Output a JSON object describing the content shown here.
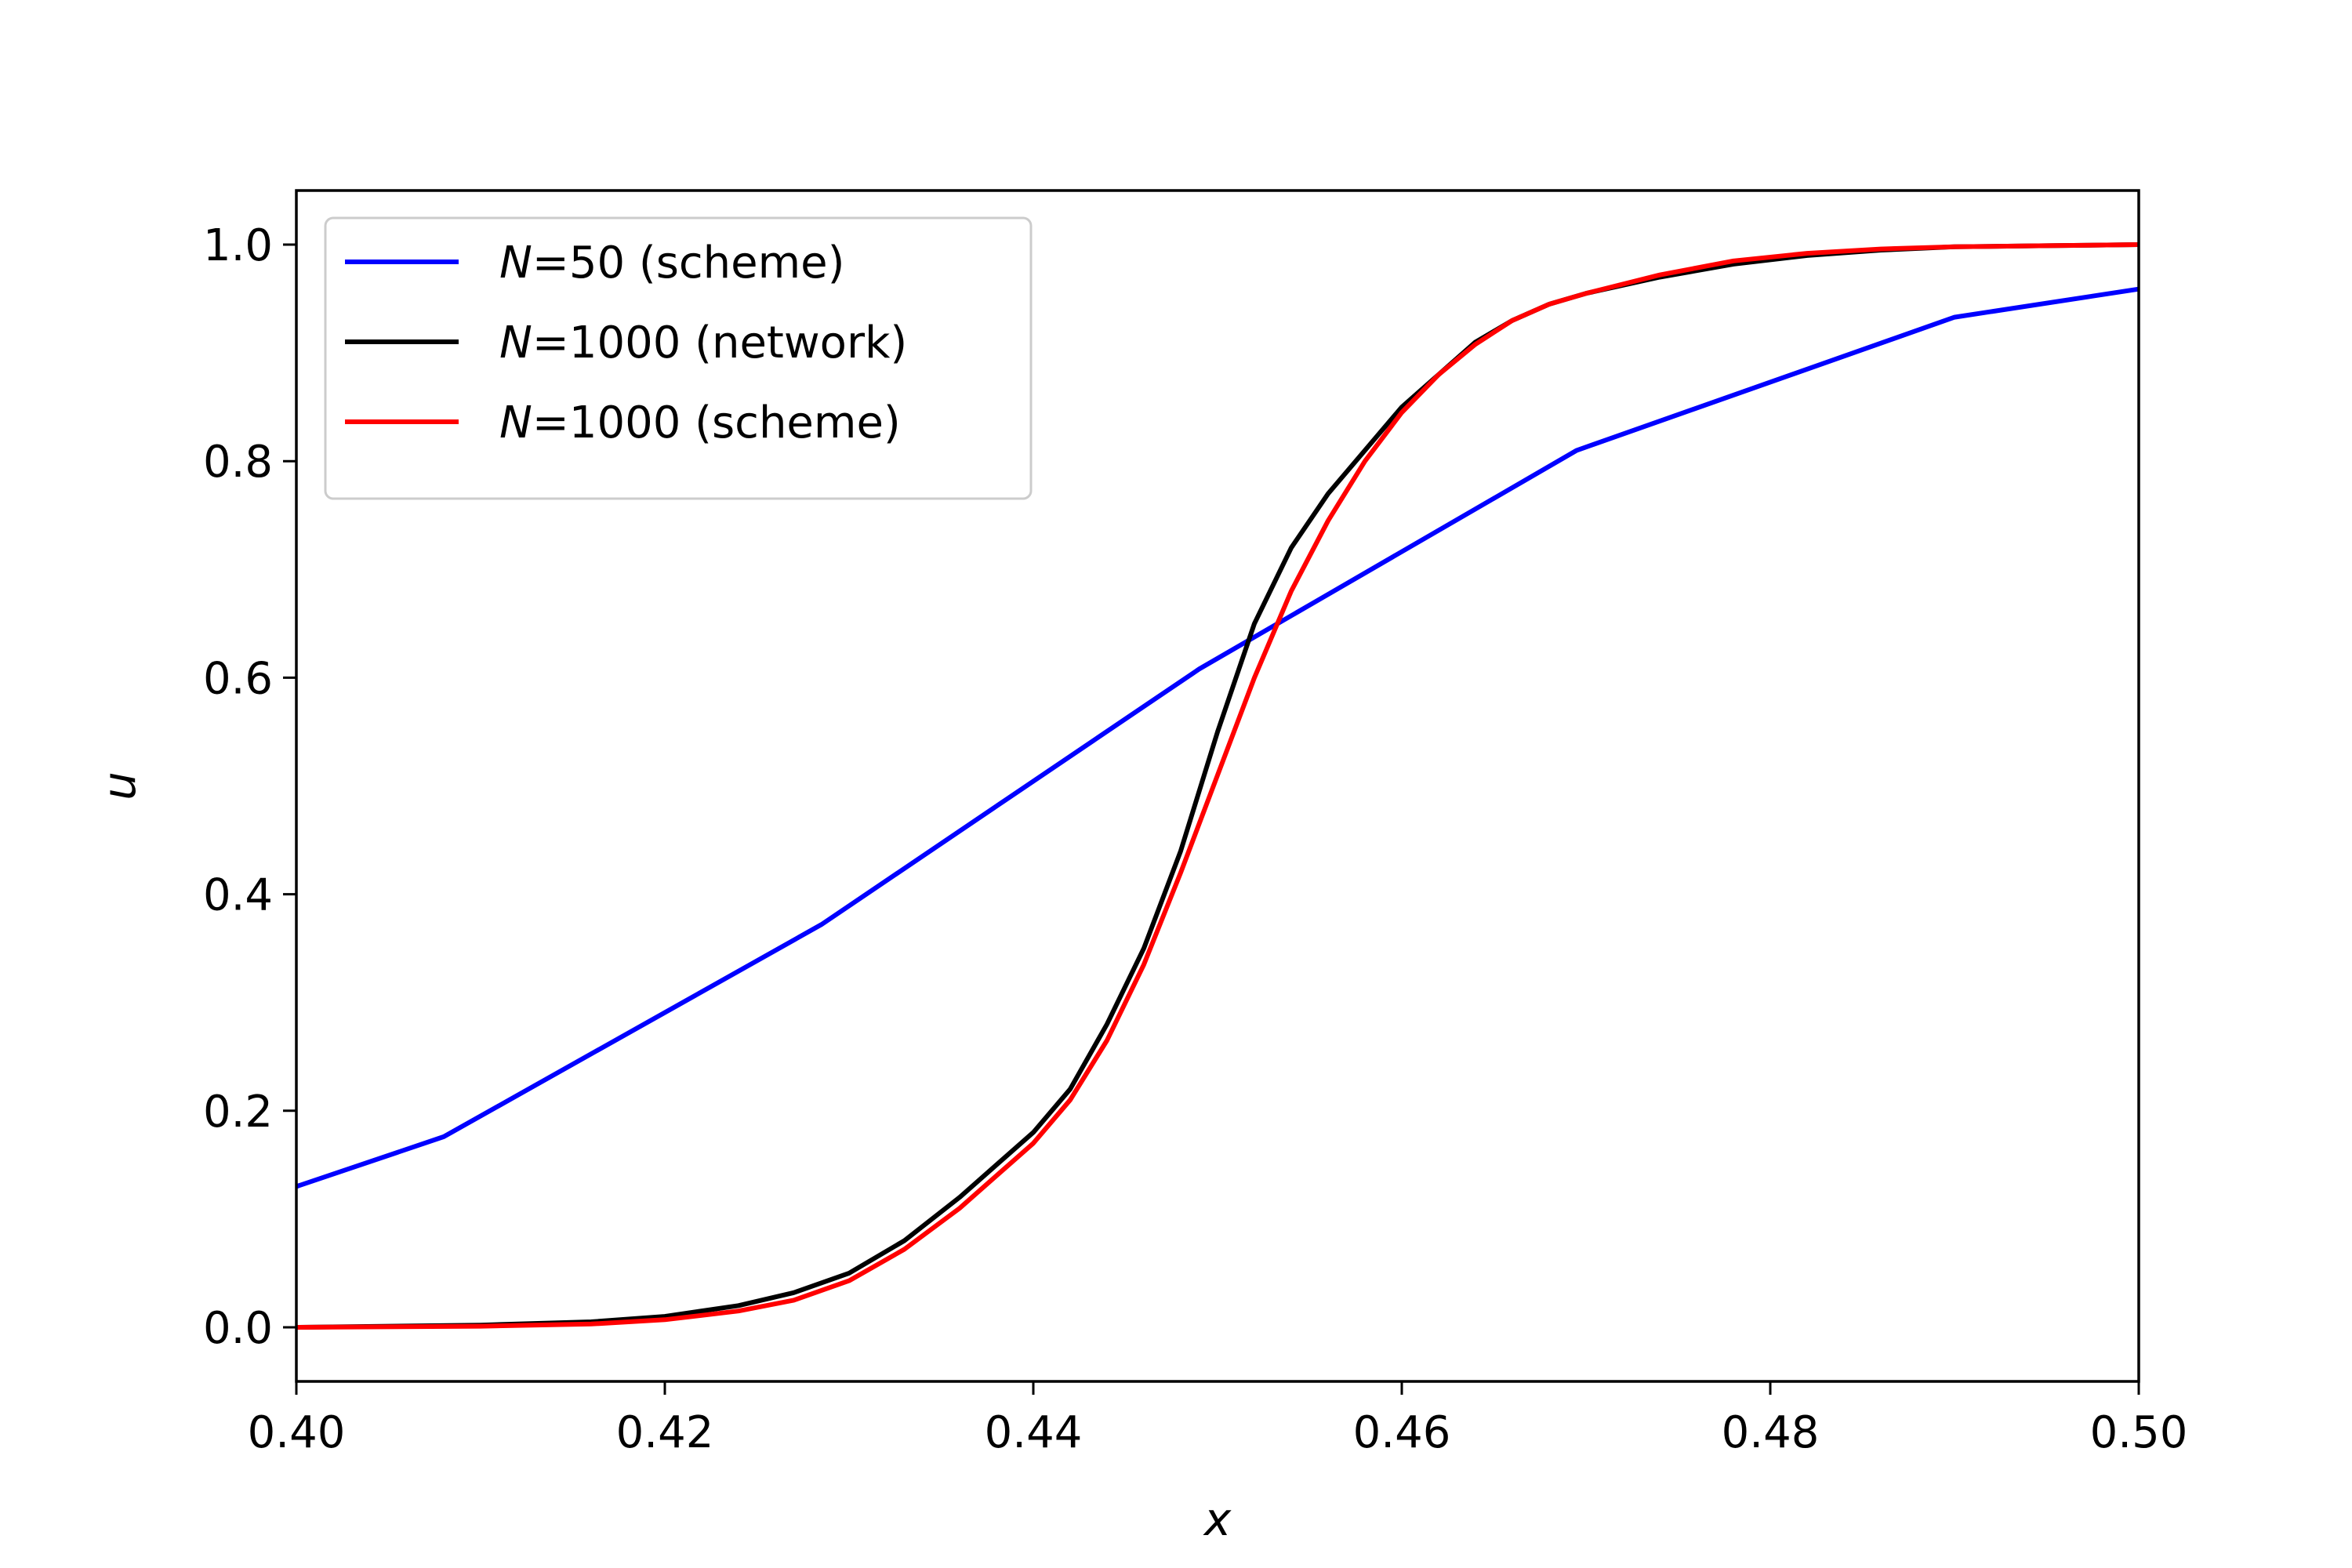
{
  "chart_data": {
    "type": "line",
    "xlabel": "x",
    "ylabel": "u",
    "xlim": [
      0.4,
      0.5
    ],
    "ylim": [
      -0.05,
      1.05
    ],
    "xticks": [
      0.4,
      0.42,
      0.44,
      0.46,
      0.48,
      0.5
    ],
    "xtick_labels": [
      "0.40",
      "0.42",
      "0.44",
      "0.46",
      "0.48",
      "0.50"
    ],
    "yticks": [
      0.0,
      0.2,
      0.4,
      0.6,
      0.8,
      1.0
    ],
    "ytick_labels": [
      "0.0",
      "0.2",
      "0.4",
      "0.6",
      "0.8",
      "1.0"
    ],
    "grid": false,
    "legend_position": "top-left",
    "series": [
      {
        "name": "N=50 (scheme)",
        "legend_italic": "N",
        "legend_rest": "=50 (scheme)",
        "color": "#0000ff",
        "x": [
          0.4,
          0.408,
          0.4285,
          0.449,
          0.4695,
          0.49,
          0.5
        ],
        "y": [
          0.13,
          0.176,
          0.372,
          0.608,
          0.81,
          0.933,
          0.959
        ]
      },
      {
        "name": "N=1000 (network)",
        "legend_italic": "N",
        "legend_rest": "=1000 (network)",
        "color": "#000000",
        "x": [
          0.4,
          0.41,
          0.416,
          0.42,
          0.424,
          0.427,
          0.43,
          0.433,
          0.436,
          0.438,
          0.44,
          0.442,
          0.444,
          0.446,
          0.448,
          0.45,
          0.452,
          0.454,
          0.456,
          0.458,
          0.46,
          0.462,
          0.464,
          0.466,
          0.468,
          0.47,
          0.474,
          0.478,
          0.482,
          0.486,
          0.49,
          0.495,
          0.5
        ],
        "y": [
          0.0,
          0.002,
          0.005,
          0.01,
          0.02,
          0.032,
          0.05,
          0.08,
          0.12,
          0.15,
          0.18,
          0.22,
          0.28,
          0.35,
          0.44,
          0.55,
          0.65,
          0.72,
          0.77,
          0.81,
          0.85,
          0.88,
          0.91,
          0.93,
          0.945,
          0.955,
          0.97,
          0.982,
          0.99,
          0.995,
          0.998,
          0.999,
          1.0
        ]
      },
      {
        "name": "N=1000 (scheme)",
        "legend_italic": "N",
        "legend_rest": "=1000 (scheme)",
        "color": "#ff0000",
        "x": [
          0.4,
          0.41,
          0.416,
          0.42,
          0.424,
          0.427,
          0.43,
          0.433,
          0.436,
          0.438,
          0.44,
          0.442,
          0.444,
          0.446,
          0.448,
          0.45,
          0.452,
          0.454,
          0.456,
          0.458,
          0.46,
          0.462,
          0.464,
          0.466,
          0.468,
          0.47,
          0.474,
          0.478,
          0.482,
          0.486,
          0.49,
          0.495,
          0.5
        ],
        "y": [
          0.0,
          0.001,
          0.003,
          0.007,
          0.015,
          0.025,
          0.043,
          0.072,
          0.11,
          0.14,
          0.17,
          0.21,
          0.265,
          0.335,
          0.42,
          0.51,
          0.6,
          0.68,
          0.745,
          0.8,
          0.845,
          0.88,
          0.908,
          0.93,
          0.945,
          0.955,
          0.972,
          0.985,
          0.992,
          0.996,
          0.998,
          0.999,
          1.0
        ]
      }
    ]
  }
}
